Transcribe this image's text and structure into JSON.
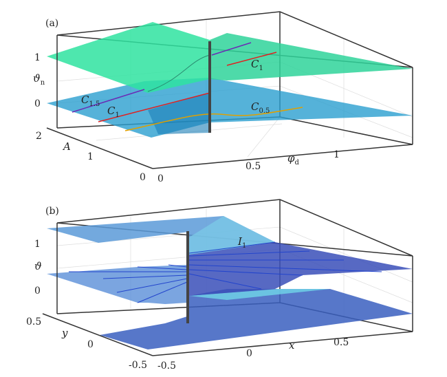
{
  "chart_data": [
    {
      "type": "surface",
      "panel_label": "(a)",
      "zlabel": "ϑ",
      "zlabel_sub": "n",
      "ylabel": "A",
      "xlabel": "φ",
      "xlabel_sub": "d",
      "zticks": [
        "1",
        "0"
      ],
      "yticks": [
        "2",
        "1",
        "0"
      ],
      "xticks": [
        "0",
        "0.5",
        "1"
      ],
      "xlim": [
        0,
        1
      ],
      "ylim": [
        0,
        2
      ],
      "annotations": [
        {
          "text": "C",
          "sub": "1.5",
          "color": "#6a2bb5"
        },
        {
          "text": "C",
          "sub": "1",
          "color": "#e02020"
        },
        {
          "text": "C",
          "sub": "1",
          "color": "#e02020"
        },
        {
          "text": "C",
          "sub": "0.5",
          "color": "#e0a000"
        }
      ],
      "colors": {
        "upper_surface": "#2fe3a0",
        "lower_surface": "#2a9fd0"
      }
    },
    {
      "type": "surface",
      "panel_label": "(b)",
      "zlabel": "ϑ",
      "ylabel": "y",
      "xlabel": "x",
      "zticks": [
        "1",
        "0"
      ],
      "yticks": [
        "0.5",
        "0",
        "-0.5"
      ],
      "xticks": [
        "-0.5",
        "0",
        "0.5"
      ],
      "xlim": [
        -0.5,
        0.5
      ],
      "ylim": [
        -0.5,
        0.5
      ],
      "annotations": [
        {
          "text": "I",
          "sub": "1"
        }
      ],
      "colors": {
        "light_surface": "#6fb6e0",
        "dark_surface": "#3a4fb8"
      }
    }
  ]
}
